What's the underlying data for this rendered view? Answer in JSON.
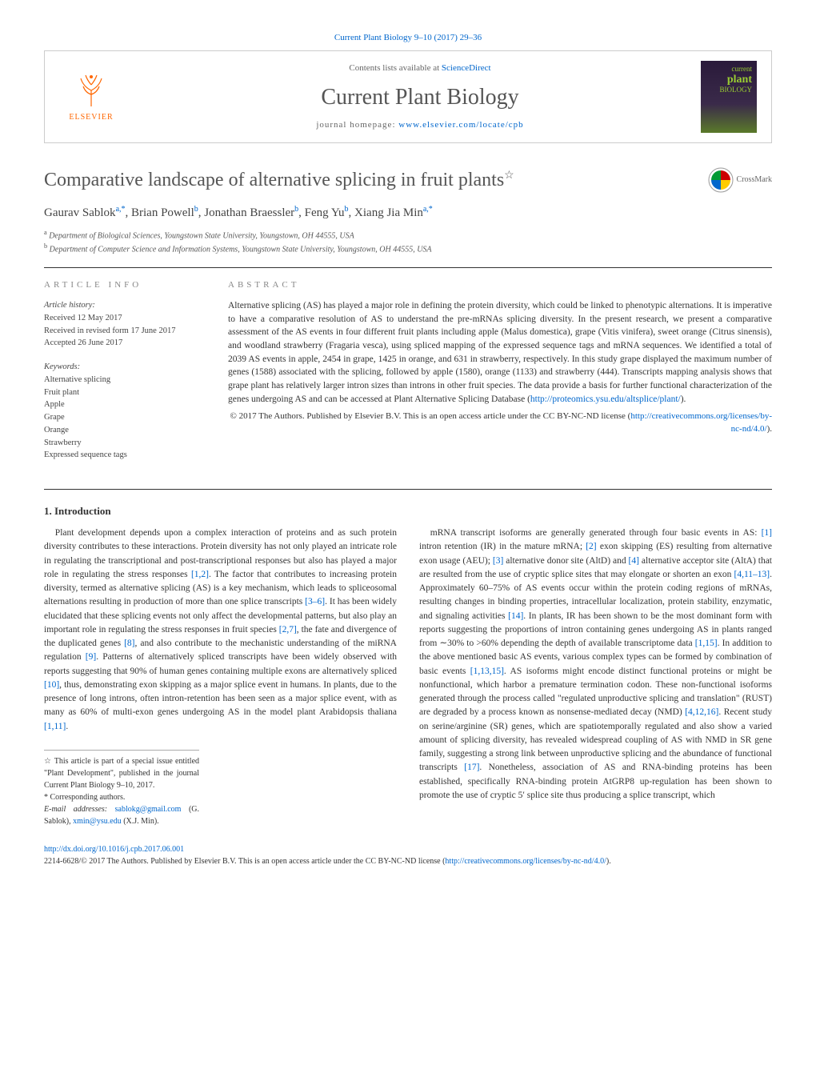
{
  "journal_ref": "Current Plant Biology 9–10 (2017) 29–36",
  "header": {
    "contents_prefix": "Contents lists available at ",
    "contents_link": "ScienceDirect",
    "journal_name": "Current Plant Biology",
    "homepage_prefix": "journal homepage: ",
    "homepage_link": "www.elsevier.com/locate/cpb",
    "elsevier_label": "ELSEVIER",
    "cover_line1": "current",
    "cover_line2": "plant",
    "cover_line3": "BIOLOGY"
  },
  "title": "Comparative landscape of alternative splicing in fruit plants",
  "crossmark_label": "CrossMark",
  "authors_html": "Gaurav Sablok",
  "author_list": [
    {
      "name": "Gaurav Sablok",
      "aff": "a,*"
    },
    {
      "name": "Brian Powell",
      "aff": "b"
    },
    {
      "name": "Jonathan Braessler",
      "aff": "b"
    },
    {
      "name": "Feng Yu",
      "aff": "b"
    },
    {
      "name": "Xiang Jia Min",
      "aff": "a,*"
    }
  ],
  "affiliations": [
    {
      "sup": "a",
      "text": "Department of Biological Sciences, Youngstown State University, Youngstown, OH 44555, USA"
    },
    {
      "sup": "b",
      "text": "Department of Computer Science and Information Systems, Youngstown State University, Youngstown, OH 44555, USA"
    }
  ],
  "info": {
    "heading": "article info",
    "history_label": "Article history:",
    "history_lines": [
      "Received 12 May 2017",
      "Received in revised form 17 June 2017",
      "Accepted 26 June 2017"
    ],
    "keywords_label": "Keywords:",
    "keywords": [
      "Alternative splicing",
      "Fruit plant",
      "Apple",
      "Grape",
      "Orange",
      "Strawberry",
      "Expressed sequence tags"
    ]
  },
  "abstract": {
    "heading": "abstract",
    "text": "Alternative splicing (AS) has played a major role in defining the protein diversity, which could be linked to phenotypic alternations. It is imperative to have a comparative resolution of AS to understand the pre-mRNAs splicing diversity. In the present research, we present a comparative assessment of the AS events in four different fruit plants including apple (Malus domestica), grape (Vitis vinifera), sweet orange (Citrus sinensis), and woodland strawberry (Fragaria vesca), using spliced mapping of the expressed sequence tags and mRNA sequences. We identified a total of 2039 AS events in apple, 2454 in grape, 1425 in orange, and 631 in strawberry, respectively. In this study grape displayed the maximum number of genes (1588) associated with the splicing, followed by apple (1580), orange (1133) and strawberry (444). Transcripts mapping analysis shows that grape plant has relatively larger intron sizes than introns in other fruit species. The data provide a basis for further functional characterization of the genes undergoing AS and can be accessed at Plant Alternative Splicing Database (",
    "db_link": "http://proteomics.ysu.edu/altsplice/plant/",
    "text_end": ").",
    "copyright": "© 2017 The Authors. Published by Elsevier B.V. This is an open access article under the CC BY-NC-ND license (",
    "license_link": "http://creativecommons.org/licenses/by-nc-nd/4.0/",
    "copyright_end": ")."
  },
  "intro_heading": "1. Introduction",
  "col1": {
    "p1a": "Plant development depends upon a complex interaction of proteins and as such protein diversity contributes to these interactions. Protein diversity has not only played an intricate role in regulating the transcriptional and post-transcriptional responses but also has played a major role in regulating the stress responses ",
    "r1": "[1,2]",
    "p1b": ". The factor that contributes to increasing protein diversity, termed as alternative splicing (AS) is a key mechanism, which leads to spliceosomal alternations resulting in production of more than one splice transcripts ",
    "r2": "[3–6]",
    "p1c": ". It has been widely elucidated that these splicing events not only affect the developmental patterns, but also play an important role in regulating the stress responses in fruit species ",
    "r3": "[2,7]",
    "p1d": ", the fate and divergence of the duplicated genes ",
    "r4": "[8]",
    "p1e": ", and also contribute to the mechanistic understanding of the miRNA regulation ",
    "r5": "[9]",
    "p1f": ". Patterns of alternatively spliced transcripts have been widely observed with reports suggesting that 90% of human genes containing multiple exons are alternatively spliced ",
    "r6": "[10]",
    "p1g": ", thus, demonstrating exon skipping as a major splice event in humans. In plants, due to the presence of long introns, often intron-retention has been seen as a major splice event, with as many as 60% of multi-exon genes undergoing AS in the model plant Arabidopsis thaliana ",
    "r7": "[1,11]",
    "p1h": "."
  },
  "col2": {
    "p1a": "mRNA transcript isoforms are generally generated through four basic events in AS: ",
    "r1": "[1]",
    "p1b": " intron retention (IR) in the mature mRNA; ",
    "r2": "[2]",
    "p1c": " exon skipping (ES) resulting from alternative exon usage (AEU); ",
    "r3": "[3]",
    "p1d": " alternative donor site (AltD) and ",
    "r4": "[4]",
    "p1e": " alternative acceptor site (AltA) that are resulted from the use of cryptic splice sites that may elongate or shorten an exon ",
    "r5": "[4,11–13]",
    "p1f": ". Approximately 60–75% of AS events occur within the protein coding regions of mRNAs, resulting changes in binding properties, intracellular localization, protein stability, enzymatic, and signaling activities ",
    "r6": "[14]",
    "p1g": ". In plants, IR has been shown to be the most dominant form with reports suggesting the proportions of intron containing genes undergoing AS in plants ranged from ∼30% to >60% depending the depth of available transcriptome data ",
    "r7": "[1,15]",
    "p1h": ". In addition to the above mentioned basic AS events, various complex types can be formed by combination of basic events ",
    "r8": "[1,13,15]",
    "p1i": ". AS isoforms might encode distinct functional proteins or might be nonfunctional, which harbor a premature termination codon. These non-functional isoforms generated through the process called \"regulated unproductive splicing and translation\" (RUST) are degraded by a process known as nonsense-mediated decay (NMD) ",
    "r9": "[4,12,16]",
    "p1j": ". Recent study on serine/arginine (SR) genes, which are spatiotemporally regulated and also show a varied amount of splicing diversity, has revealed widespread coupling of AS with NMD in SR gene family, suggesting a strong link between unproductive splicing and the abundance of functional transcripts ",
    "r10": "[17]",
    "p1k": ". Nonetheless, association of AS and RNA-binding proteins has been established, specifically RNA-binding protein AtGRP8 up-regulation has been shown to promote the use of cryptic 5′ splice site thus producing a splice transcript, which"
  },
  "footnotes": {
    "star": "☆ This article is part of a special issue entitled \"Plant Development\", published in the journal Current Plant Biology 9–10, 2017.",
    "corr": "* Corresponding authors.",
    "email_label": "E-mail addresses: ",
    "email1": "sablokg@gmail.com",
    "email1_name": " (G. Sablok), ",
    "email2": "xmin@ysu.edu",
    "email2_name": " (X.J. Min)."
  },
  "footer": {
    "doi": "http://dx.doi.org/10.1016/j.cpb.2017.06.001",
    "line": "2214-6628/© 2017 The Authors. Published by Elsevier B.V. This is an open access article under the CC BY-NC-ND license (",
    "license": "http://creativecommons.org/licenses/by-nc-nd/4.0/",
    "line_end": ")."
  },
  "colors": {
    "link": "#0066cc",
    "elsevier_orange": "#ff6600",
    "cover_green": "#9acd32",
    "text": "#333333",
    "heading_gray": "#888888"
  }
}
